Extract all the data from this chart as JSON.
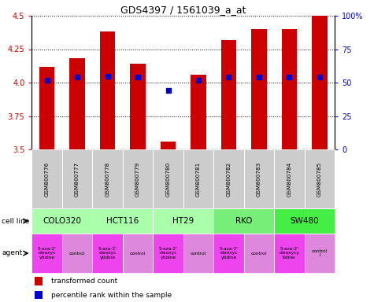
{
  "title": "GDS4397 / 1561039_a_at",
  "samples": [
    "GSM800776",
    "GSM800777",
    "GSM800778",
    "GSM800779",
    "GSM800780",
    "GSM800781",
    "GSM800782",
    "GSM800783",
    "GSM800784",
    "GSM800785"
  ],
  "transformed_count": [
    4.12,
    4.18,
    4.38,
    4.14,
    3.56,
    4.06,
    4.32,
    4.4,
    4.4,
    4.5
  ],
  "percentile_rank": [
    52,
    54,
    55,
    54,
    44,
    52,
    54,
    54,
    54,
    54
  ],
  "ylim": [
    3.5,
    4.5
  ],
  "yticks_left": [
    3.5,
    3.75,
    4.0,
    4.25,
    4.5
  ],
  "yticks_right": [
    0,
    25,
    50,
    75,
    100
  ],
  "bar_color": "#cc0000",
  "dot_color": "#0000cc",
  "bar_bottom": 3.5,
  "bar_width": 0.5,
  "dot_size": 18,
  "left_label_color": "#cc0000",
  "right_label_color": "#0000cc",
  "sample_box_color": "#cccccc",
  "cell_line_colors": {
    "COLO320": "#aaffaa",
    "HCT116": "#aaffaa",
    "HT29": "#aaffaa",
    "RKO": "#77ee77",
    "SW480": "#44ee44"
  },
  "cell_lines": [
    {
      "name": "COLO320",
      "cols": [
        0,
        1
      ]
    },
    {
      "name": "HCT116",
      "cols": [
        2,
        3
      ]
    },
    {
      "name": "HT29",
      "cols": [
        4,
        5
      ]
    },
    {
      "name": "RKO",
      "cols": [
        6,
        7
      ]
    },
    {
      "name": "SW480",
      "cols": [
        8,
        9
      ]
    }
  ],
  "agent_texts": [
    "5-aza-2'\n-deoxyc\nytidine",
    "control",
    "5-aza-2'\n-deoxyc\nytidine",
    "control",
    "5-aza-2'\n-deoxyc\nytidine",
    "control",
    "5-aza-2'\n-deoxyc\nytidine",
    "control",
    "5-aza-2'\n-deoxycy\ntidine",
    "control\nl"
  ],
  "drug_color": "#ee44ee",
  "control_color": "#dd88dd"
}
